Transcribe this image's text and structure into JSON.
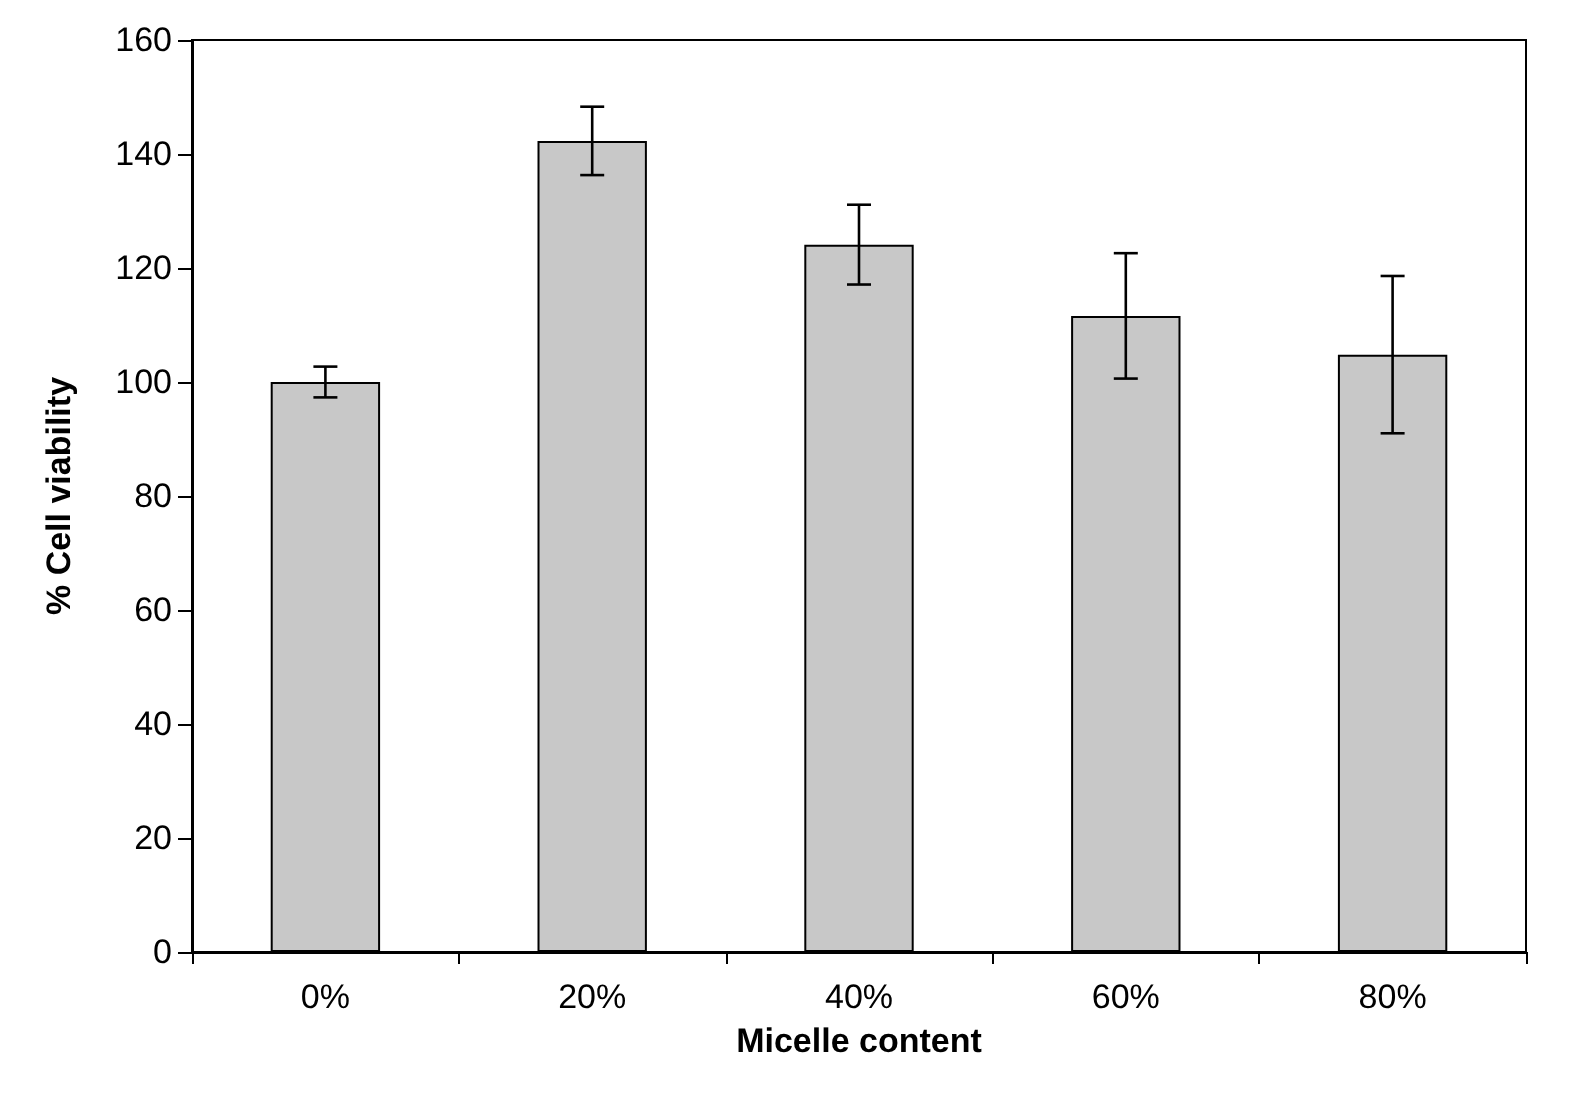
{
  "chart_data": {
    "type": "bar",
    "xlabel": "Micelle content",
    "ylabel": "% Cell viability",
    "categories": [
      "0%",
      "20%",
      "40%",
      "60%",
      "80%"
    ],
    "values": [
      100,
      142.3,
      124.1,
      111.6,
      104.8
    ],
    "errors": [
      2.7,
      6,
      7,
      11,
      13.8
    ],
    "color": "#c8c8c8",
    "ylim": [
      0,
      160
    ],
    "yticks": [
      0,
      20,
      40,
      60,
      80,
      100,
      120,
      140,
      160
    ],
    "grid": false
  }
}
